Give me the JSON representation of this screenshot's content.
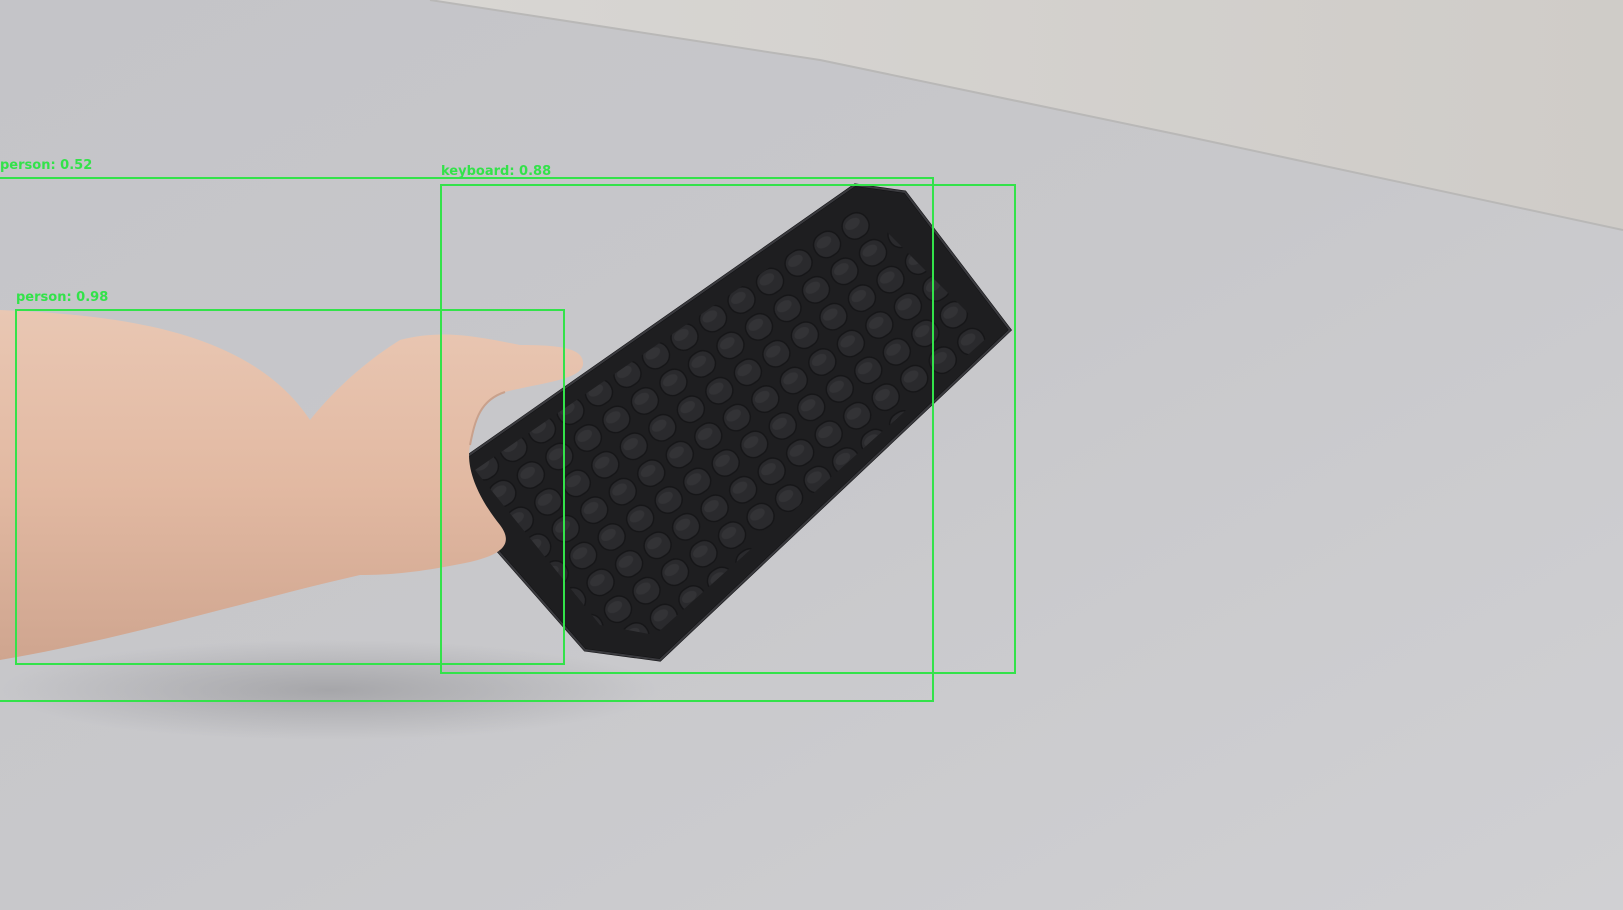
{
  "detections": [
    {
      "label": "person: 0.52"
    },
    {
      "label": "keyboard: 0.88"
    },
    {
      "label": "person: 0.98"
    }
  ],
  "colors": {
    "box": "#33e24a",
    "wall": "#c9c9cc",
    "ceiling": "#d6d3cf",
    "skin": "#e6bda6",
    "keyboard": "#1f1f21"
  }
}
